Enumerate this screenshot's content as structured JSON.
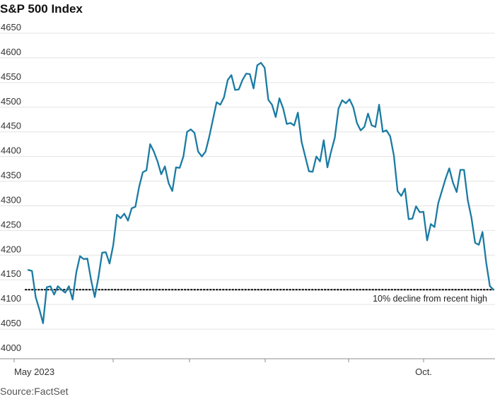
{
  "chart_data": {
    "type": "line",
    "title": "S&P 500 Index",
    "source": "Source:FactSet",
    "ylim": [
      4000,
      4650
    ],
    "y_ticks": [
      4000,
      4050,
      4100,
      4150,
      4200,
      4250,
      4300,
      4350,
      4400,
      4450,
      4500,
      4550,
      4600,
      4650
    ],
    "x_tick_labels": [
      "May 2023",
      "Oct."
    ],
    "grid": true,
    "line_color": "#1a7ba3",
    "reference_line": {
      "value": 4130,
      "label": "10% decline from recent high",
      "style": "dotted"
    },
    "series": [
      {
        "values": [
          4170,
          4168,
          4115,
          4090,
          4062,
          4135,
          4137,
          4120,
          4137,
          4130,
          4124,
          4137,
          4110,
          4165,
          4198,
          4192,
          4193,
          4150,
          4115,
          4155,
          4205,
          4206,
          4183,
          4220,
          4282,
          4275,
          4284,
          4270,
          4295,
          4298,
          4338,
          4368,
          4372,
          4425,
          4410,
          4390,
          4364,
          4380,
          4346,
          4330,
          4378,
          4377,
          4400,
          4450,
          4455,
          4448,
          4410,
          4400,
          4410,
          4440,
          4475,
          4510,
          4505,
          4520,
          4555,
          4565,
          4535,
          4536,
          4555,
          4568,
          4567,
          4538,
          4585,
          4590,
          4580,
          4515,
          4505,
          4480,
          4518,
          4498,
          4466,
          4468,
          4463,
          4489,
          4430,
          4400,
          4370,
          4369,
          4400,
          4390,
          4433,
          4378,
          4410,
          4438,
          4497,
          4514,
          4508,
          4516,
          4500,
          4468,
          4453,
          4460,
          4487,
          4463,
          4460,
          4505,
          4450,
          4453,
          4441,
          4402,
          4330,
          4320,
          4335,
          4273,
          4274,
          4299,
          4287,
          4288,
          4230,
          4263,
          4257,
          4305,
          4330,
          4355,
          4376,
          4347,
          4328,
          4373,
          4373,
          4312,
          4276,
          4225,
          4221,
          4247,
          4185,
          4137,
          4130
        ]
      }
    ]
  }
}
